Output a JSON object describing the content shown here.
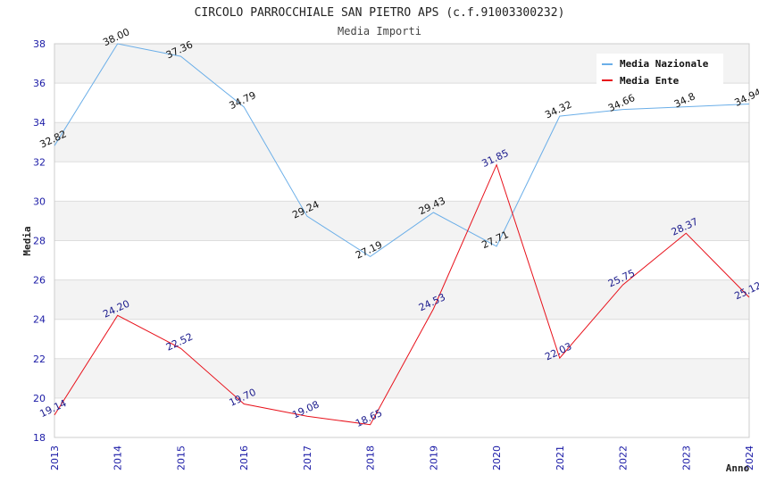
{
  "chart_data": {
    "type": "line",
    "title": "CIRCOLO PARROCCHIALE SAN PIETRO APS (c.f.91003300232)",
    "subtitle": "Media Importi",
    "xlabel": "Anno",
    "ylabel": "Media",
    "categories": [
      "2013",
      "2014",
      "2015",
      "2016",
      "2017",
      "2018",
      "2019",
      "2020",
      "2021",
      "2022",
      "2023",
      "2024"
    ],
    "ylim": [
      18,
      38
    ],
    "yticks": [
      18,
      20,
      22,
      24,
      26,
      28,
      30,
      32,
      34,
      36,
      38
    ],
    "legend_position": "top-right",
    "series": [
      {
        "name": "Media Nazionale",
        "color": "#6aaee8",
        "label_color": "#111111",
        "values": [
          32.82,
          38.0,
          37.36,
          34.79,
          29.24,
          27.19,
          29.43,
          27.71,
          34.32,
          34.66,
          34.8,
          34.94
        ],
        "labels": [
          "32.82",
          "38.00",
          "37.36",
          "34.79",
          "29.24",
          "27.19",
          "29.43",
          "27.71",
          "34.32",
          "34.66",
          "34.8",
          "34.94"
        ]
      },
      {
        "name": "Media Ente",
        "color": "#e8101a",
        "label_color": "#1a1a8c",
        "values": [
          19.14,
          24.2,
          22.52,
          19.7,
          19.08,
          18.65,
          24.53,
          31.85,
          22.03,
          25.75,
          28.37,
          25.12
        ],
        "labels": [
          "19.14",
          "24.20",
          "22.52",
          "19.70",
          "19.08",
          "18.65",
          "24.53",
          "31.85",
          "22.03",
          "25.75",
          "28.37",
          "25.12"
        ]
      }
    ]
  }
}
